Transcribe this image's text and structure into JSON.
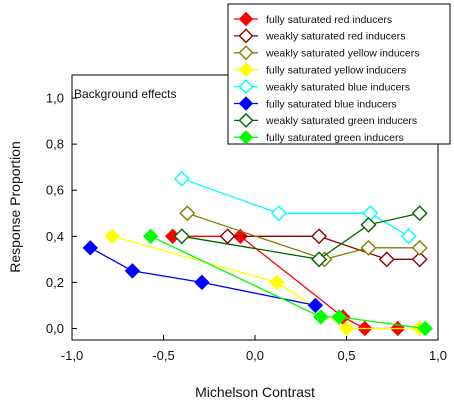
{
  "chart_data": {
    "type": "line",
    "xlabel": "Michelson Contrast",
    "ylabel": "Response Proportion",
    "xlim": [
      -1.0,
      1.0
    ],
    "ylim": [
      -0.05,
      1.1
    ],
    "xticks": [
      -1.0,
      -0.5,
      0.0,
      0.5,
      1.0
    ],
    "xtick_labels": [
      "-1,0",
      "-0,5",
      "0,0",
      "0,5",
      "1,0"
    ],
    "yticks": [
      0.0,
      0.2,
      0.4,
      0.6,
      0.8,
      1.0
    ],
    "ytick_labels": [
      "0,0",
      "0,2",
      "0,4",
      "0,6",
      "0,8",
      "1,0"
    ],
    "annotation": "Background effects",
    "grid": false,
    "legend_position": "top-right",
    "series": [
      {
        "name": "fully saturated red inducers",
        "color": "#ff0000",
        "marker": "diamond-filled",
        "x": [
          -0.45,
          -0.08,
          0.48,
          0.6,
          0.78
        ],
        "y": [
          0.4,
          0.4,
          0.05,
          0.0,
          0.0
        ]
      },
      {
        "name": "weakly saturated red inducers",
        "color": "#8b0000",
        "marker": "diamond-open",
        "x": [
          -0.15,
          0.35,
          0.72,
          0.9
        ],
        "y": [
          0.4,
          0.4,
          0.3,
          0.3
        ]
      },
      {
        "name": "weakly saturated yellow inducers",
        "color": "#808000",
        "marker": "diamond-open",
        "x": [
          -0.37,
          0.38,
          0.62,
          0.9
        ],
        "y": [
          0.5,
          0.3,
          0.35,
          0.35
        ]
      },
      {
        "name": "fully saturated yellow inducers",
        "color": "#ffff00",
        "marker": "diamond-filled",
        "x": [
          -0.78,
          0.12,
          0.5,
          0.9
        ],
        "y": [
          0.4,
          0.2,
          0.0,
          0.0
        ]
      },
      {
        "name": "weakly saturated blue inducers",
        "color": "#00ffff",
        "marker": "diamond-open",
        "x": [
          -0.4,
          0.13,
          0.63,
          0.84
        ],
        "y": [
          0.65,
          0.5,
          0.5,
          0.4
        ]
      },
      {
        "name": "fully saturated blue inducers",
        "color": "#0000ff",
        "marker": "diamond-filled",
        "x": [
          -0.9,
          -0.67,
          -0.29,
          0.33
        ],
        "y": [
          0.35,
          0.25,
          0.2,
          0.1
        ]
      },
      {
        "name": "weakly saturated green inducers",
        "color": "#006400",
        "marker": "diamond-open",
        "x": [
          -0.4,
          0.35,
          0.62,
          0.9
        ],
        "y": [
          0.4,
          0.3,
          0.45,
          0.5
        ]
      },
      {
        "name": "fully saturated green inducers",
        "color": "#00ff00",
        "marker": "diamond-filled",
        "x": [
          -0.57,
          0.36,
          0.46,
          0.93
        ],
        "y": [
          0.4,
          0.05,
          0.05,
          0.0
        ]
      }
    ]
  }
}
